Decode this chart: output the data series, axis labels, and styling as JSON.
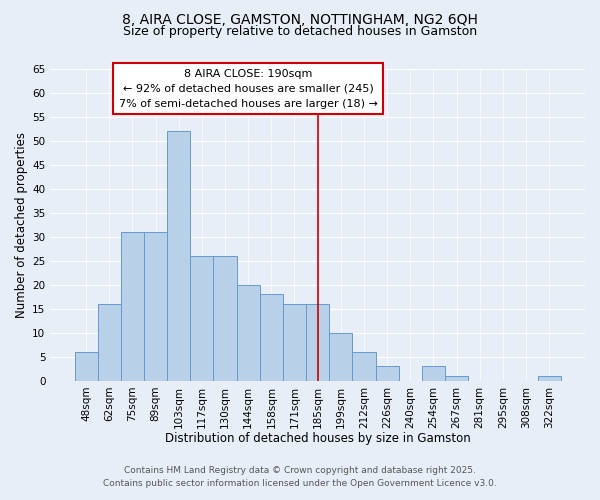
{
  "title": "8, AIRA CLOSE, GAMSTON, NOTTINGHAM, NG2 6QH",
  "subtitle": "Size of property relative to detached houses in Gamston",
  "xlabel": "Distribution of detached houses by size in Gamston",
  "ylabel": "Number of detached properties",
  "bar_labels": [
    "48sqm",
    "62sqm",
    "75sqm",
    "89sqm",
    "103sqm",
    "117sqm",
    "130sqm",
    "144sqm",
    "158sqm",
    "171sqm",
    "185sqm",
    "199sqm",
    "212sqm",
    "226sqm",
    "240sqm",
    "254sqm",
    "267sqm",
    "281sqm",
    "295sqm",
    "308sqm",
    "322sqm"
  ],
  "bar_values": [
    6,
    16,
    31,
    31,
    52,
    26,
    26,
    20,
    18,
    16,
    16,
    10,
    6,
    3,
    0,
    3,
    1,
    0,
    0,
    0,
    1
  ],
  "bar_color": "#b8d0e8",
  "bar_edge_color": "#6699cc",
  "ylim": [
    0,
    65
  ],
  "yticks": [
    0,
    5,
    10,
    15,
    20,
    25,
    30,
    35,
    40,
    45,
    50,
    55,
    60,
    65
  ],
  "vline_x_index": 10,
  "vline_color": "#cc0000",
  "annotation_title": "8 AIRA CLOSE: 190sqm",
  "annotation_line1": "← 92% of detached houses are smaller (245)",
  "annotation_line2": "7% of semi-detached houses are larger (18) →",
  "annotation_box_color": "#ffffff",
  "annotation_box_edge": "#cc0000",
  "background_color": "#e8eef8",
  "grid_color": "#ffffff",
  "footer_line1": "Contains HM Land Registry data © Crown copyright and database right 2025.",
  "footer_line2": "Contains public sector information licensed under the Open Government Licence v3.0.",
  "title_fontsize": 10,
  "subtitle_fontsize": 9,
  "axis_label_fontsize": 8.5,
  "tick_fontsize": 7.5,
  "annotation_fontsize": 8,
  "footer_fontsize": 6.5
}
